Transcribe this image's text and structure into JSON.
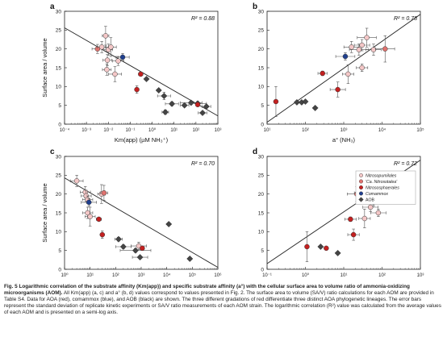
{
  "figure": {
    "panels": [
      "a",
      "b",
      "c",
      "d"
    ]
  },
  "caption": {
    "lead": "Fig. 5   Logarithmic correlation of the substrate affinity (Km(app)) and specific substrate affinity (a°) with the cellular surface area to volume ratio of ammonia-oxidizing microorganisms (AOM).",
    "body": " All Km(app) (a, c) and a° (b, d) values correspond to values presented in Fig. 2. The surface area to volume (SA/V) ratio calculations for each AOM are provided in Table S4. Data for AOA (red), comammox (blue), and AOB (black) are shown. The three different gradations of red differentiate three distinct AOA phylogenetic lineages. The error bars represent the standard deviation of replicate kinetic experiments or SA/V ratio measurements of each AOM strain. The logarithmic correlation (R²) value was calculated from the average values of each AOM and is presented on a semi-log axis."
  },
  "colors": {
    "nitrosopumilales": "#f4c7c7",
    "ca_nitrosotalea": "#e0736f",
    "nitrososphaerales": "#c42020",
    "comammox": "#1f3f8f",
    "aob": "#444444",
    "line": "#222222",
    "errorbar": "#555555"
  },
  "chart_data": [
    {
      "id": "a",
      "type": "scatter",
      "panel_label": "a",
      "r2": "R² = 0.88",
      "xlabel": "Km(app) (µM NH₃⁺)",
      "ylabel": "Surface area / volume",
      "xscale": "log",
      "xlim": [
        0.0001,
        1000
      ],
      "ylim": [
        0,
        30
      ],
      "xticks": [
        "10⁻⁴",
        "10⁻³",
        "10⁻²",
        "10⁻¹",
        "10⁰",
        "10¹",
        "10²",
        "10³"
      ],
      "yticks": [
        0,
        5,
        10,
        15,
        20,
        25,
        30
      ],
      "fit": [
        [
          0.0001,
          25.6
        ],
        [
          1000,
          2.2
        ]
      ],
      "points": [
        {
          "x": 0.0032,
          "y": 20.0,
          "g": "ca_nitrosotalea",
          "xe": 0.25,
          "ye": 1.2
        },
        {
          "x": 0.005,
          "y": 20.5,
          "g": "nitrosopumilales",
          "xe": 0.2,
          "ye": 1.5
        },
        {
          "x": 0.0075,
          "y": 23.5,
          "g": "nitrosopumilales",
          "xe": 0.15,
          "ye": 2.5
        },
        {
          "x": 0.01,
          "y": 19.8,
          "g": "nitrosopumilales",
          "xe": 0.2,
          "ye": 1.5
        },
        {
          "x": 0.013,
          "y": 20.5,
          "g": "nitrosopumilales",
          "xe": 0.25,
          "ye": 2.5
        },
        {
          "x": 0.009,
          "y": 17.0,
          "g": "nitrosopumilales",
          "xe": 0.2,
          "ye": 1.5
        },
        {
          "x": 0.0085,
          "y": 14.5,
          "g": "nitrosopumilales",
          "xe": 0.2,
          "ye": 1.5
        },
        {
          "x": 0.02,
          "y": 13.3,
          "g": "nitrosopumilales",
          "xe": 0.3,
          "ye": 2.0
        },
        {
          "x": 0.045,
          "y": 17.8,
          "g": "comammox",
          "xe": 0.3,
          "ye": 1.0
        },
        {
          "x": 0.028,
          "y": 16.8,
          "g": "nitrosopumilales",
          "xe": 0.25,
          "ye": 1.2
        },
        {
          "x": 0.3,
          "y": 13.3,
          "g": "nitrososphaerales",
          "xe": 0.1,
          "ye": 0.5
        },
        {
          "x": 0.2,
          "y": 9.2,
          "g": "nitrososphaerales",
          "xe": 0,
          "ye": 1.0
        },
        {
          "x": 0.55,
          "y": 12.0,
          "g": "aob",
          "xe": 0,
          "ye": 0
        },
        {
          "x": 2,
          "y": 9.0,
          "g": "aob",
          "xe": 0,
          "ye": 0
        },
        {
          "x": 3.5,
          "y": 7.5,
          "g": "aob",
          "xe": 0.3,
          "ye": 1.0
        },
        {
          "x": 4,
          "y": 3.2,
          "g": "aob",
          "xe": 0.15,
          "ye": 0.6
        },
        {
          "x": 8,
          "y": 5.4,
          "g": "aob",
          "xe": 0.3,
          "ye": 0.5
        },
        {
          "x": 30,
          "y": 5.0,
          "g": "aob",
          "xe": 0.2,
          "ye": 0.4
        },
        {
          "x": 60,
          "y": 5.7,
          "g": "aob",
          "xe": 0.5,
          "ye": 0.4
        },
        {
          "x": 120,
          "y": 5.5,
          "g": "aob",
          "xe": 0.4,
          "ye": 0.5
        },
        {
          "x": 200,
          "y": 3.0,
          "g": "aob",
          "xe": 0.2,
          "ye": 0.3
        },
        {
          "x": 300,
          "y": 4.7,
          "g": "aob",
          "xe": 0.2,
          "ye": 0.4
        },
        {
          "x": 120,
          "y": 5.2,
          "g": "nitrososphaerales",
          "xe": 0,
          "ye": 0
        }
      ]
    },
    {
      "id": "b",
      "type": "scatter",
      "panel_label": "b",
      "r2": "R² = 0.78",
      "xlabel": "a° (NH₃)",
      "ylabel": "",
      "xscale": "log",
      "xlim": [
        10,
        100000
      ],
      "ylim": [
        0,
        30
      ],
      "xticks": [
        "10¹",
        "10²",
        "10³",
        "10⁴",
        "10⁵"
      ],
      "yticks": [
        0,
        5,
        10,
        15,
        20,
        25,
        30
      ],
      "fit": [
        [
          10,
          0.5
        ],
        [
          100000,
          29.2
        ]
      ],
      "points": [
        {
          "x": 17,
          "y": 6.0,
          "g": "nitrososphaerales",
          "xe": 0,
          "ye": 4.0
        },
        {
          "x": 60,
          "y": 5.8,
          "g": "aob",
          "xe": 0,
          "ye": 0
        },
        {
          "x": 80,
          "y": 5.8,
          "g": "aob",
          "xe": 0,
          "ye": 0
        },
        {
          "x": 100,
          "y": 6.0,
          "g": "aob",
          "xe": 0,
          "ye": 0
        },
        {
          "x": 180,
          "y": 4.3,
          "g": "aob",
          "xe": 0,
          "ye": 0
        },
        {
          "x": 280,
          "y": 13.5,
          "g": "nitrososphaerales",
          "xe": 0.12,
          "ye": 0.6
        },
        {
          "x": 700,
          "y": 9.2,
          "g": "nitrososphaerales",
          "xe": 0.2,
          "ye": 2.0
        },
        {
          "x": 1100,
          "y": 18.0,
          "g": "comammox",
          "xe": 0.25,
          "ye": 1.0
        },
        {
          "x": 1300,
          "y": 13.3,
          "g": "nitrosopumilales",
          "xe": 0.15,
          "ye": 2.5
        },
        {
          "x": 1600,
          "y": 20.5,
          "g": "nitrosopumilales",
          "xe": 0.2,
          "ye": 1.5
        },
        {
          "x": 2500,
          "y": 19.8,
          "g": "nitrosopumilales",
          "xe": 0.25,
          "ye": 1.5
        },
        {
          "x": 3000,
          "y": 21.0,
          "g": "nitrosopumilales",
          "xe": 0.2,
          "ye": 1.5
        },
        {
          "x": 4000,
          "y": 23.0,
          "g": "nitrosopumilales",
          "xe": 0.25,
          "ye": 2.5
        },
        {
          "x": 3000,
          "y": 15.0,
          "g": "nitrosopumilales",
          "xe": 0.15,
          "ye": 1.0
        },
        {
          "x": 6000,
          "y": 19.8,
          "g": "nitrosopumilales",
          "xe": 0.2,
          "ye": 1.5
        },
        {
          "x": 12000,
          "y": 20.0,
          "g": "ca_nitrosotalea",
          "xe": 0.25,
          "ye": 3.5
        }
      ]
    },
    {
      "id": "c",
      "type": "scatter",
      "panel_label": "c",
      "r2": "R² = 0.70",
      "xlabel": "Km(app) (µM NH₃ + NH₄⁺)",
      "ylabel": "Surface area / volume",
      "xscale": "log",
      "xlim": [
        1,
        1000000
      ],
      "ylim": [
        0,
        30
      ],
      "xticks": [
        "10⁰",
        "10¹",
        "10²",
        "10³",
        "10⁴",
        "10⁵",
        "10⁶"
      ],
      "yticks": [
        0,
        5,
        10,
        15,
        20,
        25,
        30
      ],
      "fit": [
        [
          1,
          24.3
        ],
        [
          1000000,
          0.5
        ]
      ],
      "points": [
        {
          "x": 3,
          "y": 23.5,
          "g": "nitrosopumilales",
          "xe": 0.25,
          "ye": 1.5
        },
        {
          "x": 6.5,
          "y": 20.5,
          "g": "nitrosopumilales",
          "xe": 0.2,
          "ye": 1.5
        },
        {
          "x": 7,
          "y": 19.5,
          "g": "nitrosopumilales",
          "xe": 0.2,
          "ye": 1.5
        },
        {
          "x": 8,
          "y": 18.5,
          "g": "nitrosopumilales",
          "xe": 0.2,
          "ye": 1.0
        },
        {
          "x": 9,
          "y": 17.8,
          "g": "comammox",
          "xe": 0.3,
          "ye": 1.0
        },
        {
          "x": 8,
          "y": 15.0,
          "g": "nitrosopumilales",
          "xe": 0.2,
          "ye": 1.5
        },
        {
          "x": 10,
          "y": 14.0,
          "g": "nitrosopumilales",
          "xe": 0.2,
          "ye": 2.5
        },
        {
          "x": 22,
          "y": 13.3,
          "g": "nitrososphaerales",
          "xe": 0.1,
          "ye": 0.5
        },
        {
          "x": 28,
          "y": 20.0,
          "g": "nitrosopumilales",
          "xe": 0.15,
          "ye": 2.5
        },
        {
          "x": 35,
          "y": 20.3,
          "g": "ca_nitrosotalea",
          "xe": 0.15,
          "ye": 2.0
        },
        {
          "x": 30,
          "y": 9.2,
          "g": "nitrososphaerales",
          "xe": 0,
          "ye": 1.0
        },
        {
          "x": 130,
          "y": 8.0,
          "g": "aob",
          "xe": 0.15,
          "ye": 0.5
        },
        {
          "x": 200,
          "y": 6.0,
          "g": "aob",
          "xe": 0.3,
          "ye": 0.5
        },
        {
          "x": 600,
          "y": 5.0,
          "g": "aob",
          "xe": 0.6,
          "ye": 0.5
        },
        {
          "x": 800,
          "y": 6.2,
          "g": "nitrosopumilales",
          "xe": 0.3,
          "ye": 1.0
        },
        {
          "x": 1100,
          "y": 5.6,
          "g": "nitrososphaerales",
          "xe": 0,
          "ye": 0
        },
        {
          "x": 900,
          "y": 3.2,
          "g": "aob",
          "xe": 0.3,
          "ye": 0.4
        },
        {
          "x": 12000,
          "y": 12.0,
          "g": "aob",
          "xe": 0,
          "ye": 0
        },
        {
          "x": 80000,
          "y": 2.8,
          "g": "aob",
          "xe": 0,
          "ye": 0
        }
      ]
    },
    {
      "id": "d",
      "type": "scatter",
      "panel_label": "d",
      "r2": "R² = 0.72",
      "xlabel": "a° (NH₃ + NH₄⁺)",
      "ylabel": "",
      "xscale": "log",
      "xlim": [
        0.1,
        1000
      ],
      "ylim": [
        0,
        30
      ],
      "xticks": [
        "10⁻¹",
        "10⁰",
        "10¹",
        "10²",
        "10³"
      ],
      "yticks": [
        0,
        5,
        10,
        15,
        20,
        25,
        30
      ],
      "fit": [
        [
          0.1,
          1.5
        ],
        [
          1000,
          29.0
        ]
      ],
      "points": [
        {
          "x": 1.1,
          "y": 6.0,
          "g": "nitrososphaerales",
          "xe": 0,
          "ye": 4.0
        },
        {
          "x": 2.5,
          "y": 6.0,
          "g": "aob",
          "xe": 0,
          "ye": 0
        },
        {
          "x": 3.5,
          "y": 5.6,
          "g": "nitrososphaerales",
          "xe": 0,
          "ye": 0
        },
        {
          "x": 7,
          "y": 4.3,
          "g": "aob",
          "xe": 0,
          "ye": 0
        },
        {
          "x": 18,
          "y": 9.2,
          "g": "nitrososphaerales",
          "xe": 0.15,
          "ye": 1.5
        },
        {
          "x": 15,
          "y": 13.3,
          "g": "nitrososphaerales",
          "xe": 0.15,
          "ye": 0.6
        },
        {
          "x": 22,
          "y": 20.0,
          "g": "ca_nitrosotalea",
          "xe": 0.25,
          "ye": 2.0
        },
        {
          "x": 30,
          "y": 20.3,
          "g": "nitrosopumilales",
          "xe": 0.2,
          "ye": 1.5
        },
        {
          "x": 35,
          "y": 13.5,
          "g": "nitrosopumilales",
          "xe": 0.15,
          "ye": 2.5
        },
        {
          "x": 50,
          "y": 16.5,
          "g": "nitrosopumilales",
          "xe": 0.2,
          "ye": 1.2
        },
        {
          "x": 60,
          "y": 17.8,
          "g": "comammox",
          "xe": 0.25,
          "ye": 1.0
        },
        {
          "x": 80,
          "y": 15.0,
          "g": "nitrosopumilales",
          "xe": 0.2,
          "ye": 1.0
        },
        {
          "x": 80,
          "y": 19.8,
          "g": "nitrosopumilales",
          "xe": 0.2,
          "ye": 1.5
        },
        {
          "x": 330,
          "y": 23.3,
          "g": "nitrosopumilales",
          "xe": 0.3,
          "ye": 1.5
        }
      ],
      "legend": [
        {
          "g": "nitrosopumilales",
          "label": "Nitrosopumilales"
        },
        {
          "g": "ca_nitrosotalea",
          "label": "'Ca. Nitrosotalea'"
        },
        {
          "g": "nitrososphaerales",
          "label": "Nitrososphaerales"
        },
        {
          "g": "comammox",
          "label": "Comammox"
        },
        {
          "g": "aob",
          "label": "AOB"
        }
      ],
      "legend_position": "top-right"
    }
  ]
}
